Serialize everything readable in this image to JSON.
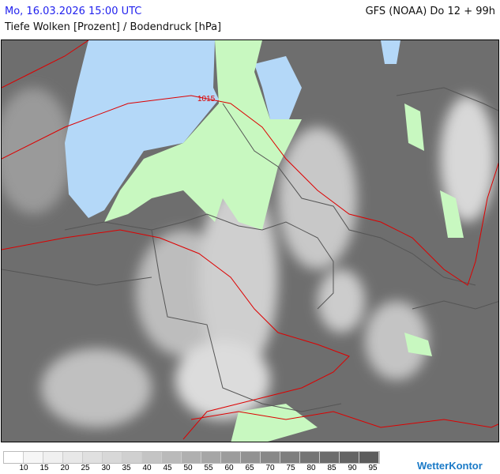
{
  "header": {
    "datetime": "Mo, 16.03.2026 15:00 UTC",
    "model_run": "GFS (NOAA) Do 12 + 99h",
    "parameter": "Tiefe Wolken [Prozent] / Bodendruck [hPa]"
  },
  "map": {
    "isobar_label": "1015",
    "colors": {
      "sea": "#b4d8f8",
      "land_clear": "#c8f8c0",
      "isobar": "#dd0000",
      "border": "#555555"
    }
  },
  "legend": {
    "labels": [
      "10",
      "15",
      "20",
      "25",
      "30",
      "35",
      "40",
      "45",
      "50",
      "55",
      "60",
      "65",
      "70",
      "75",
      "80",
      "85",
      "90",
      "95"
    ],
    "colors": [
      "#ffffff",
      "#f6f6f6",
      "#f0f0f0",
      "#e8e8e8",
      "#e0e0e0",
      "#d8d8d8",
      "#d0d0d0",
      "#c4c4c4",
      "#bababa",
      "#b0b0b0",
      "#a6a6a6",
      "#9c9c9c",
      "#929292",
      "#888888",
      "#7e7e7e",
      "#747474",
      "#6c6c6c",
      "#646464",
      "#5c5c5c"
    ]
  },
  "logo": {
    "text": "WetterKontor"
  }
}
